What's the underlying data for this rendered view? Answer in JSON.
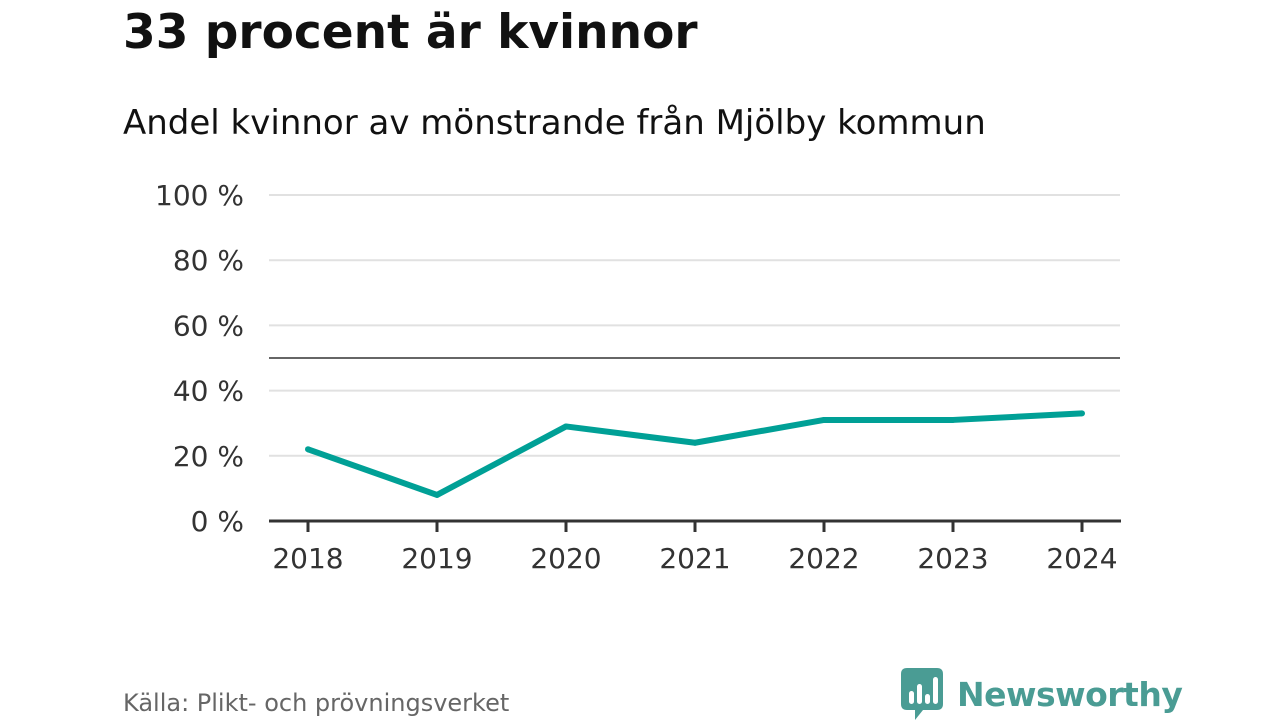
{
  "title": "33 procent är kvinnor",
  "subtitle": "Andel kvinnor av mönstrande från Mjölby kommun",
  "source": "Källa: Plikt- och prövningsverket",
  "brand": {
    "name": "Newsworthy",
    "icon": "newsworthy-logo-icon",
    "color": "#4a9c94"
  },
  "colors": {
    "line": "#00a096",
    "grid": "#e1e1e1",
    "axis": "#333333",
    "reference": "#666666",
    "tick_text": "#333333"
  },
  "chart_data": {
    "type": "line",
    "title": "33 procent är kvinnor",
    "subtitle": "Andel kvinnor av mönstrande från Mjölby kommun",
    "xlabel": "",
    "ylabel": "",
    "categories": [
      "2018",
      "2019",
      "2020",
      "2021",
      "2022",
      "2023",
      "2024"
    ],
    "series": [
      {
        "name": "Andel kvinnor",
        "values": [
          22,
          8,
          29,
          24,
          31,
          31,
          33
        ]
      }
    ],
    "ylim": [
      0,
      100
    ],
    "yticks": [
      0,
      20,
      40,
      60,
      80,
      100
    ],
    "ytick_labels": [
      "0 %",
      "20 %",
      "40 %",
      "60 %",
      "80 %",
      "100 %"
    ],
    "reference_line": 50,
    "grid": true,
    "legend": "none"
  }
}
